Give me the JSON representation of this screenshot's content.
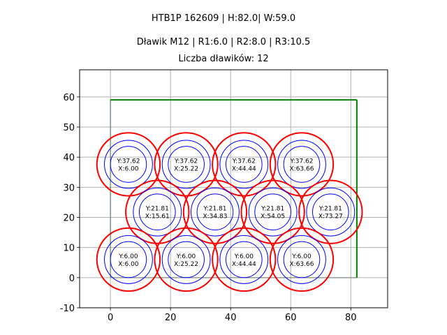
{
  "titles": {
    "line1": "HTB1P 162609 | H:82.0| W:59.0",
    "line2": "Dławik M12 | R1:6.0 | R2:8.0 | R3:10.5",
    "line3": "Liczba dławików: 12"
  },
  "chart_data": {
    "type": "scatter",
    "xlim": [
      -10.25,
      92.25
    ],
    "ylim": [
      -10,
      69
    ],
    "aspect": "equal",
    "grid": true,
    "x_ticks": [
      0,
      20,
      40,
      60,
      80
    ],
    "y_ticks": [
      -10,
      0,
      10,
      20,
      30,
      40,
      50,
      60
    ],
    "enclosure": {
      "x0": 0,
      "y0": 0,
      "x1": 82,
      "y1": 59,
      "color": "#008000"
    },
    "radii": {
      "r1": 6.0,
      "r2": 8.0,
      "r3": 10.5
    },
    "colors": {
      "inner": "#0000ff",
      "outer": "#ff0000",
      "grid": "#b0b0b0"
    },
    "points": [
      {
        "x": 6.0,
        "y": 37.62,
        "label_y": "Y:37.62",
        "label_x": "X:6.00"
      },
      {
        "x": 25.22,
        "y": 37.62,
        "label_y": "Y:37.62",
        "label_x": "X:25.22"
      },
      {
        "x": 44.44,
        "y": 37.62,
        "label_y": "Y:37.62",
        "label_x": "X:44.44"
      },
      {
        "x": 63.66,
        "y": 37.62,
        "label_y": "Y:37.62",
        "label_x": "X:63.66"
      },
      {
        "x": 15.61,
        "y": 21.81,
        "label_y": "Y:21.81",
        "label_x": "X:15.61"
      },
      {
        "x": 34.83,
        "y": 21.81,
        "label_y": "Y:21.81",
        "label_x": "X:34.83"
      },
      {
        "x": 54.05,
        "y": 21.81,
        "label_y": "Y:21.81",
        "label_x": "X:54.05"
      },
      {
        "x": 73.27,
        "y": 21.81,
        "label_y": "Y:21.81",
        "label_x": "X:73.27"
      },
      {
        "x": 6.0,
        "y": 6.0,
        "label_y": "Y:6.00",
        "label_x": "X:6.00"
      },
      {
        "x": 25.22,
        "y": 6.0,
        "label_y": "Y:6.00",
        "label_x": "X:25.22"
      },
      {
        "x": 44.44,
        "y": 6.0,
        "label_y": "Y:6.00",
        "label_x": "X:44.44"
      },
      {
        "x": 63.66,
        "y": 6.0,
        "label_y": "Y:6.00",
        "label_x": "X:63.66"
      }
    ]
  }
}
